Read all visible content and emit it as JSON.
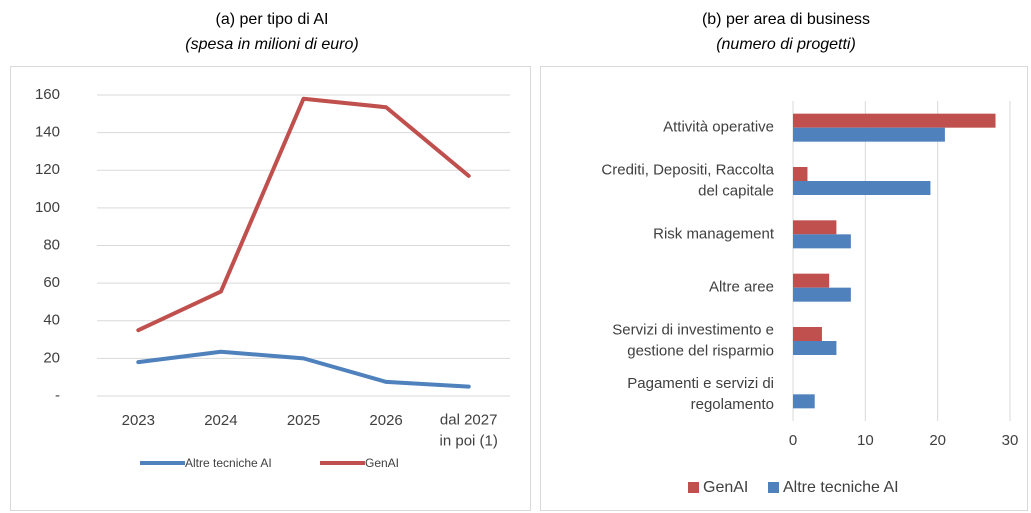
{
  "chart_data": [
    {
      "type": "line",
      "title": "(a) per tipo di AI",
      "subtitle": "(spesa in milioni di euro)",
      "categories": [
        "2023",
        "2024",
        "2025",
        "2026",
        "dal 2027\nin poi (1)"
      ],
      "series": [
        {
          "name": "Altre tecniche AI",
          "color": "#4f81bd",
          "values": [
            18,
            23.5,
            20,
            7.5,
            5
          ]
        },
        {
          "name": "GenAI",
          "color": "#c0504d",
          "values": [
            35,
            55.5,
            158,
            153.5,
            117
          ]
        }
      ],
      "ylim": [
        0,
        160
      ],
      "yticks": [
        {
          "value": 0,
          "label": "-"
        },
        20,
        40,
        60,
        80,
        100,
        120,
        140,
        160
      ],
      "grid": true,
      "legend": "bottom"
    },
    {
      "type": "barh",
      "title": "(b) per area di business",
      "subtitle": "(numero di progetti)",
      "categories": [
        "Attività operative",
        "Crediti, Depositi, Raccolta\ndel capitale",
        "Risk management",
        "Altre aree",
        "Servizi di investimento e\ngestione del risparmio",
        "Pagamenti e servizi di\nregolamento"
      ],
      "series": [
        {
          "name": "GenAI",
          "color": "#c0504d",
          "values": [
            28,
            2,
            6,
            5,
            4,
            0
          ]
        },
        {
          "name": "Altre tecniche AI",
          "color": "#4f81bd",
          "values": [
            21,
            19,
            8,
            8,
            6,
            3
          ]
        }
      ],
      "xlim": [
        0,
        30
      ],
      "xticks": [
        0,
        10,
        20,
        30
      ],
      "grid": true,
      "legend": "bottom"
    }
  ]
}
